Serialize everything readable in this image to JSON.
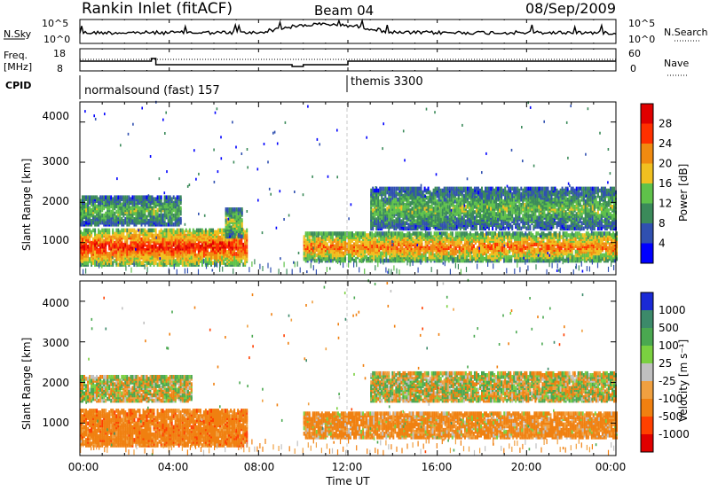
{
  "header": {
    "station": "Rankin Inlet (fitACF)",
    "beam": "Beam 04",
    "date": "08/Sep/2009"
  },
  "noise_panel": {
    "left_label": "N.Sky",
    "right_label": "N.Search",
    "left_ticks": [
      "10^5",
      "10^0"
    ],
    "right_ticks": [
      "10^5",
      "10^0"
    ]
  },
  "freq_panel": {
    "left_label": "Freq.",
    "left_unit": "[MHz]",
    "right_label": "Nave",
    "left_ticks": [
      "18",
      "8"
    ],
    "right_ticks": [
      "60",
      "0"
    ]
  },
  "cpid": {
    "label": "CPID",
    "modes": [
      {
        "name": "normalsound (fast) 157",
        "start": "00:00"
      },
      {
        "name": "themis 3300",
        "start": "12:00"
      }
    ]
  },
  "time_axis": {
    "label": "Time UT",
    "ticks": [
      "00:00",
      "04:00",
      "08:00",
      "12:00",
      "16:00",
      "20:00",
      "00:00"
    ]
  },
  "range_axis": {
    "label": "Slant Range [km]",
    "ticks": [
      "1000",
      "2000",
      "3000",
      "4000"
    ],
    "ylim": [
      200,
      4500
    ]
  },
  "power_scale": {
    "label": "Power [dB]",
    "ticks": [
      "4",
      "8",
      "12",
      "16",
      "20",
      "24",
      "28"
    ],
    "colors": [
      "#0000ff",
      "#3050b0",
      "#3b8a5a",
      "#5fc24a",
      "#f0c020",
      "#f08a10",
      "#ff3000",
      "#e00000"
    ]
  },
  "velocity_scale": {
    "label": "Velocity [m s⁻¹]",
    "ticks": [
      "1000",
      "500",
      "100",
      "25",
      "-25",
      "-100",
      "-500",
      "-1000"
    ],
    "colors": [
      "#1a2ad6",
      "#3c8a6a",
      "#4aa850",
      "#7ad040",
      "#c0c0c0",
      "#f0a040",
      "#f08010",
      "#ff4000",
      "#e00000"
    ]
  },
  "chart_data": {
    "type": "heatmap",
    "x_unit": "UT hours",
    "xlim": [
      0,
      24
    ],
    "power_echo_bands": [
      {
        "t_start": 0.0,
        "t_end": 7.5,
        "range_min": 400,
        "range_max": 1300,
        "level_db": 28
      },
      {
        "t_start": 0.0,
        "t_end": 4.5,
        "range_min": 1400,
        "range_max": 2100,
        "level_db": 14
      },
      {
        "t_start": 6.5,
        "t_end": 7.3,
        "range_min": 1100,
        "range_max": 1800,
        "level_db": 16
      },
      {
        "t_start": 10.0,
        "t_end": 24.0,
        "range_min": 500,
        "range_max": 1200,
        "level_db": 24
      },
      {
        "t_start": 13.0,
        "t_end": 24.0,
        "range_min": 1300,
        "range_max": 2300,
        "level_db": 14
      }
    ],
    "velocity_echo_bands": [
      {
        "t_start": 0.0,
        "t_end": 5.0,
        "range_min": 1500,
        "range_max": 2100,
        "velocity_ms": 0
      },
      {
        "t_start": 0.0,
        "t_end": 7.5,
        "range_min": 400,
        "range_max": 1300,
        "velocity_ms": -300
      },
      {
        "t_start": 10.0,
        "t_end": 24.0,
        "range_min": 600,
        "range_max": 1200,
        "velocity_ms": -200
      },
      {
        "t_start": 13.0,
        "t_end": 24.0,
        "range_min": 1500,
        "range_max": 2200,
        "velocity_ms": 0
      }
    ]
  }
}
